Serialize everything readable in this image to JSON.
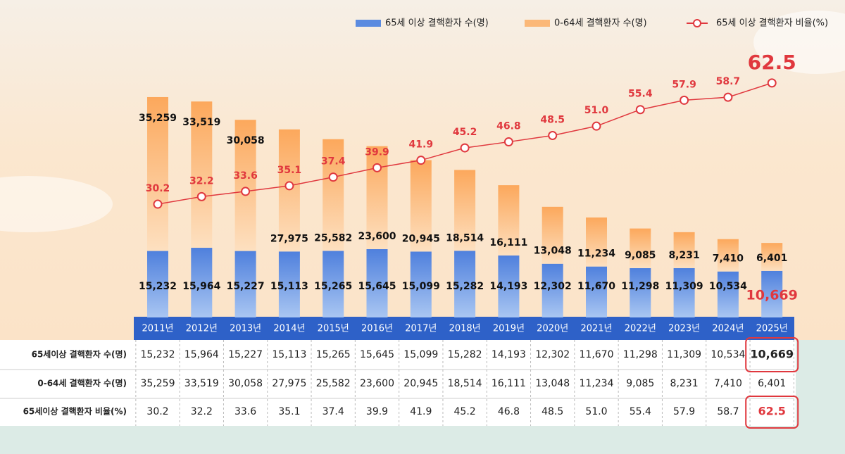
{
  "chart_data": {
    "type": "bar-line",
    "categories": [
      "2011년",
      "2012년",
      "2013년",
      "2014년",
      "2015년",
      "2016년",
      "2017년",
      "2018년",
      "2019년",
      "2020년",
      "2021년",
      "2022년",
      "2023년",
      "2024년",
      "2025년"
    ],
    "series": [
      {
        "name": "65세 이상 결핵환자 수(명)",
        "color": "#5b8be0",
        "values": [
          15232,
          15964,
          15227,
          15113,
          15265,
          15645,
          15099,
          15282,
          14193,
          12302,
          11670,
          11298,
          11309,
          10534,
          10669
        ],
        "value_labels": [
          "15,232",
          "15,964",
          "15,227",
          "15,113",
          "15,265",
          "15,645",
          "15,099",
          "15,282",
          "14,193",
          "12,302",
          "11,670",
          "11,298",
          "11,309",
          "10,534",
          "10,669"
        ]
      },
      {
        "name": "0-64세 결핵환자 수(명)",
        "color": "#fbb878",
        "values": [
          35259,
          33519,
          30058,
          27975,
          25582,
          23600,
          20945,
          18514,
          16111,
          13048,
          11234,
          9085,
          8231,
          7410,
          6401
        ],
        "value_labels": [
          "35,259",
          "33,519",
          "30,058",
          "27,975",
          "25,582",
          "23,600",
          "20,945",
          "18,514",
          "16,111",
          "13,048",
          "11,234",
          "9,085",
          "8,231",
          "7,410",
          "6,401"
        ]
      },
      {
        "name": "65세 이상 결핵환자 비율(%)",
        "color": "#e0383e",
        "type": "line",
        "values": [
          30.2,
          32.2,
          33.6,
          35.1,
          37.4,
          39.9,
          41.9,
          45.2,
          46.8,
          48.5,
          51.0,
          55.4,
          57.9,
          58.7,
          62.5
        ],
        "value_labels": [
          "30.2",
          "32.2",
          "33.6",
          "35.1",
          "37.4",
          "39.9",
          "41.9",
          "45.2",
          "46.8",
          "48.5",
          "51.0",
          "55.4",
          "57.9",
          "58.7",
          "62.5"
        ]
      }
    ],
    "table_row_labels": [
      "65세이상 결핵환자 수(명)",
      "0-64세 결핵환자 수(명)",
      "65세이상 결핵환자 비율(%)"
    ],
    "legend": "top-right"
  }
}
